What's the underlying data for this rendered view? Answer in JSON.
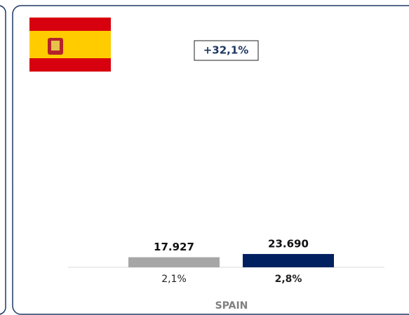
{
  "chart_data": {
    "type": "bar",
    "values": [
      17927,
      23690
    ],
    "value_labels": [
      "17.927",
      "23.690"
    ],
    "colors": [
      "#a6a6a6",
      "#002060"
    ],
    "shares": [
      {
        "value": 2.1,
        "label": "2,1%"
      },
      {
        "value": 2.8,
        "label": "2,8%"
      }
    ],
    "xlabel": "SPAIN",
    "annotation": {
      "value": 32.1,
      "label": "+32,1%"
    },
    "ylim": [
      0,
      300000
    ]
  }
}
